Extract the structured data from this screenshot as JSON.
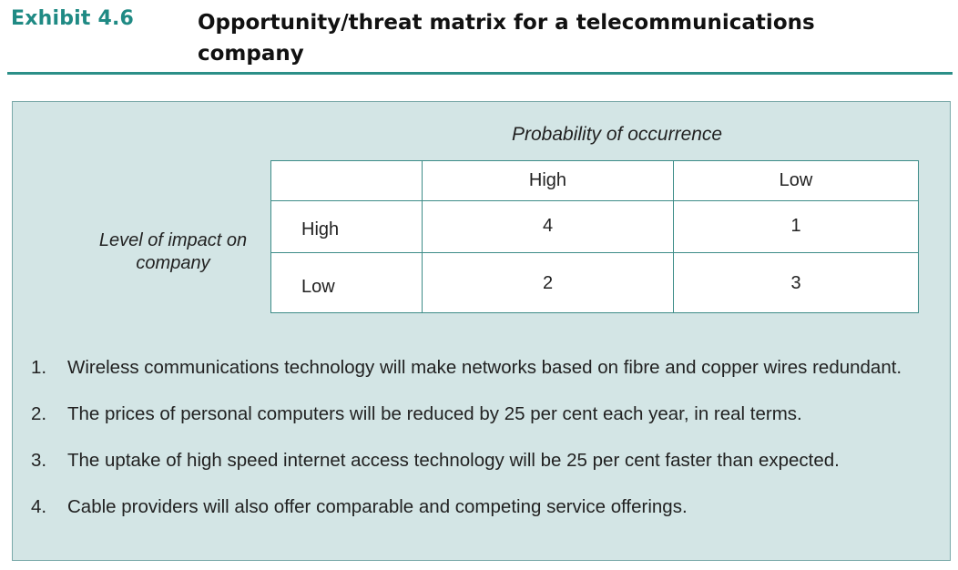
{
  "exhibit": {
    "label": "Exhibit 4.6",
    "title": "Opportunity/threat matrix for a telecommunications company"
  },
  "matrix": {
    "column_axis_label": "Probability of occurrence",
    "row_axis_label": "Level of impact on company",
    "column_headers": [
      "High",
      "Low"
    ],
    "rows": [
      {
        "label": "High",
        "cells": [
          "4",
          "1"
        ]
      },
      {
        "label": "Low",
        "cells": [
          "2",
          "3"
        ]
      }
    ]
  },
  "notes": [
    {
      "number": "1.",
      "text": "Wireless communications technology will make networks based on fibre and copper wires redundant."
    },
    {
      "number": "2.",
      "text": "The prices of personal computers will be reduced by 25 per cent each year, in real terms."
    },
    {
      "number": "3.",
      "text": "The uptake of high speed internet access technology will be 25 per cent faster than expected."
    },
    {
      "number": "4.",
      "text": "Cable providers will also offer comparable and competing service offerings."
    }
  ]
}
